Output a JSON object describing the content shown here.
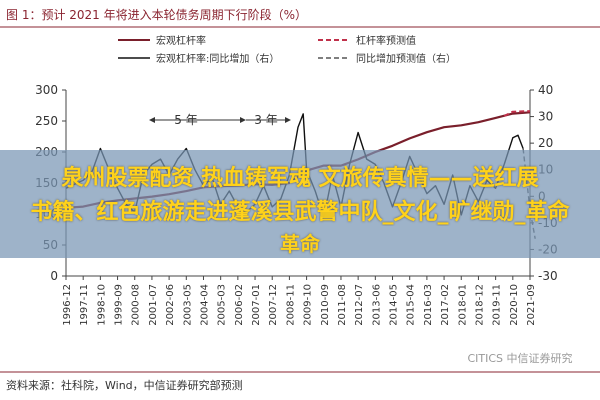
{
  "chart_data": {
    "type": "line",
    "title": "图 1：预计 2021 年将进入本轮债务周期下行阶段（%）",
    "x_labels": [
      "1996-12",
      "1997-11",
      "1998-10",
      "1999-09",
      "2000-08",
      "2001-07",
      "2002-06",
      "2003-05",
      "2004-04",
      "2005-03",
      "2006-02",
      "2007-01",
      "2007-12",
      "2008-11",
      "2009-10",
      "2010-09",
      "2011-08",
      "2012-07",
      "2013-06",
      "2014-05",
      "2015-04",
      "2016-03",
      "2017-02",
      "2018-01",
      "2018-12",
      "2019-11",
      "2020-10",
      "2021-09"
    ],
    "left_axis": {
      "ticks": [
        0,
        50,
        100,
        150,
        200,
        250,
        300
      ],
      "range": [
        0,
        300
      ]
    },
    "right_axis": {
      "ticks": [
        -30,
        -20,
        -10,
        0,
        10,
        20,
        30,
        40
      ],
      "range": [
        -30,
        40
      ]
    },
    "legend": [
      {
        "label": "宏观杠杆率",
        "color": "#7a1f2b",
        "style": "solid"
      },
      {
        "label": "杠杆率预测值",
        "color": "#c0304a",
        "style": "dashed"
      },
      {
        "label": "宏观杠杆率:同比增加（右）",
        "color": "#111111",
        "style": "solid"
      },
      {
        "label": "同比增加预测值（右）",
        "color": "#555555",
        "style": "dashed"
      }
    ],
    "annotations": [
      "5 年",
      "3 年"
    ],
    "series": [
      {
        "name": "宏观杠杆率",
        "axis": "left",
        "points": [
          [
            0,
            110
          ],
          [
            1,
            112
          ],
          [
            2,
            118
          ],
          [
            3,
            122
          ],
          [
            4,
            125
          ],
          [
            5,
            128
          ],
          [
            6,
            132
          ],
          [
            7,
            137
          ],
          [
            8,
            143
          ],
          [
            9,
            145
          ],
          [
            10,
            146
          ],
          [
            11,
            148
          ],
          [
            12,
            147
          ],
          [
            13,
            150
          ],
          [
            14,
            170
          ],
          [
            15,
            178
          ],
          [
            16,
            178
          ],
          [
            17,
            188
          ],
          [
            18,
            200
          ],
          [
            19,
            210
          ],
          [
            20,
            222
          ],
          [
            21,
            232
          ],
          [
            22,
            240
          ],
          [
            23,
            243
          ],
          [
            24,
            248
          ],
          [
            25,
            255
          ],
          [
            26,
            262
          ],
          [
            27,
            264
          ]
        ]
      },
      {
        "name": "杠杆率预测值",
        "axis": "left",
        "points": [
          [
            25.5,
            258
          ],
          [
            26,
            265
          ],
          [
            27,
            266
          ]
        ]
      },
      {
        "name": "宏观杠杆率:同比增加（右）",
        "axis": "right",
        "points": [
          [
            0,
            3
          ],
          [
            1,
            6
          ],
          [
            1.5,
            9
          ],
          [
            2,
            18
          ],
          [
            2.5,
            10
          ],
          [
            3,
            3
          ],
          [
            3.5,
            -3
          ],
          [
            4,
            -6
          ],
          [
            4.5,
            8
          ],
          [
            5,
            12
          ],
          [
            5.5,
            14
          ],
          [
            6,
            8
          ],
          [
            6.5,
            14
          ],
          [
            7,
            18
          ],
          [
            7.5,
            10
          ],
          [
            8,
            4
          ],
          [
            8.5,
            7
          ],
          [
            9,
            -3
          ],
          [
            9.5,
            2
          ],
          [
            10,
            -4
          ],
          [
            10.5,
            -6
          ],
          [
            11,
            -3
          ],
          [
            11.5,
            4
          ],
          [
            12,
            -4
          ],
          [
            12.5,
            -1
          ],
          [
            13,
            8
          ],
          [
            13.5,
            26
          ],
          [
            13.8,
            31
          ],
          [
            14,
            10
          ],
          [
            14.5,
            2
          ],
          [
            15,
            -8
          ],
          [
            15.5,
            8
          ],
          [
            16,
            -4
          ],
          [
            16.5,
            12
          ],
          [
            17,
            24
          ],
          [
            17.5,
            14
          ],
          [
            18,
            12
          ],
          [
            18.5,
            5
          ],
          [
            19,
            -4
          ],
          [
            19.5,
            5
          ],
          [
            20,
            15
          ],
          [
            20.5,
            8
          ],
          [
            21,
            1
          ],
          [
            21.5,
            4
          ],
          [
            22,
            -3
          ],
          [
            22.5,
            8
          ],
          [
            23,
            -7
          ],
          [
            23.5,
            4
          ],
          [
            24,
            -2
          ],
          [
            24.5,
            6
          ],
          [
            25,
            3
          ],
          [
            25.5,
            12
          ],
          [
            26,
            22
          ],
          [
            26.3,
            23
          ],
          [
            26.6,
            18
          ]
        ]
      },
      {
        "name": "同比增加预测值（右）",
        "axis": "right",
        "points": [
          [
            26.6,
            18
          ],
          [
            27,
            -5
          ],
          [
            27.3,
            -16
          ]
        ]
      }
    ]
  },
  "source": "资料来源：社科院，Wind，中信证券研究部预测",
  "watermark": "CITICS 中信证券研究",
  "banner": {
    "line1": "泉州股票配资 热血铸军魂 文旅传真情——送红展",
    "line2": "书籍、红色旅游走进蓬溪县武警中队_文化_旷继勋_革命",
    "line3": "革命"
  }
}
